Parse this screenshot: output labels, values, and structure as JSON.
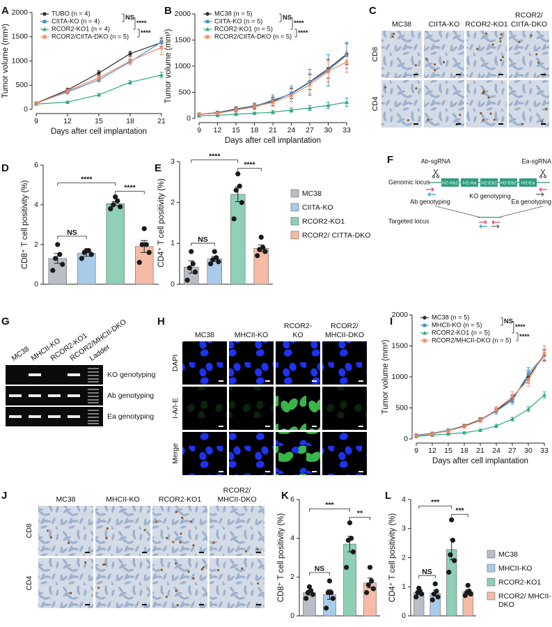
{
  "panel_labels": [
    "A",
    "B",
    "C",
    "D",
    "E",
    "F",
    "G",
    "H",
    "I",
    "J",
    "K",
    "L"
  ],
  "chart_data": [
    {
      "type": "line",
      "y_label": "Tumor volume (mm³)",
      "x_label": "Days after cell implantation",
      "x": [
        9,
        12,
        15,
        18,
        21
      ],
      "xlim": [
        9,
        21
      ],
      "xticks": [
        9,
        12,
        15,
        18,
        21
      ],
      "ylim": [
        0,
        2000
      ],
      "yticks": [
        0,
        500,
        1000,
        1500,
        2000
      ],
      "series": [
        {
          "name": "TUBO (n = 4)",
          "color": "#2b2b2b",
          "marker": "circle",
          "values": [
            130,
            400,
            750,
            1150,
            1380
          ],
          "errors": [
            20,
            40,
            50,
            50,
            80
          ]
        },
        {
          "name": "CIITA-KO (n = 4)",
          "color": "#3a8fd6",
          "marker": "square",
          "values": [
            130,
            360,
            610,
            980,
            1390
          ],
          "errors": [
            20,
            40,
            40,
            60,
            100
          ]
        },
        {
          "name": "RCOR2-KO1 (n = 4)",
          "color": "#2aa885",
          "marker": "triangle",
          "values": [
            110,
            150,
            300,
            560,
            710
          ],
          "errors": [
            10,
            20,
            30,
            40,
            60
          ]
        },
        {
          "name": "RCOR2/CIITA-DKO (n = 5)",
          "color": "#f0845c",
          "marker": "x",
          "values": [
            120,
            380,
            650,
            1000,
            1280
          ],
          "errors": [
            20,
            40,
            60,
            80,
            150
          ]
        }
      ],
      "annotations": [
        "NS",
        "****",
        "****"
      ]
    },
    {
      "type": "line",
      "y_label": "Tumor volume (mm³)",
      "x_label": "Days after cell implantation",
      "x": [
        9,
        12,
        15,
        18,
        21,
        24,
        27,
        30,
        33
      ],
      "xlim": [
        9,
        33
      ],
      "xticks": [
        9,
        12,
        15,
        18,
        21,
        24,
        27,
        30,
        33
      ],
      "ylim": [
        0,
        2000
      ],
      "yticks": [
        0,
        500,
        1000,
        1500,
        2000
      ],
      "series": [
        {
          "name": "MC38 (n = 5)",
          "color": "#2b2b2b",
          "marker": "circle",
          "values": [
            80,
            110,
            180,
            240,
            330,
            480,
            700,
            950,
            1230
          ],
          "errors": [
            20,
            30,
            40,
            50,
            80,
            100,
            150,
            180,
            200
          ]
        },
        {
          "name": "CIITA-KO (n = 5)",
          "color": "#3a8fd6",
          "marker": "square",
          "values": [
            80,
            100,
            170,
            230,
            350,
            470,
            690,
            920,
            1210
          ],
          "errors": [
            20,
            30,
            40,
            60,
            100,
            150,
            250,
            300,
            250
          ]
        },
        {
          "name": "RCOR2-KO1 (n = 5)",
          "color": "#2aa885",
          "marker": "triangle",
          "values": [
            50,
            60,
            80,
            100,
            120,
            160,
            200,
            250,
            310
          ],
          "errors": [
            10,
            10,
            15,
            20,
            30,
            40,
            50,
            60,
            80
          ]
        },
        {
          "name": "RCOR2/CIITA-DKO (n = 5)",
          "color": "#f0845c",
          "marker": "x",
          "values": [
            80,
            100,
            160,
            220,
            310,
            440,
            650,
            900,
            1080
          ],
          "errors": [
            20,
            30,
            40,
            50,
            80,
            120,
            180,
            200,
            200
          ]
        }
      ],
      "annotations": [
        "NS",
        "****",
        "****"
      ]
    },
    {
      "type": "bar",
      "y_label": "CD8⁺ T cell positivity (%)",
      "ylim": [
        0,
        6
      ],
      "yticks": [
        0,
        2,
        4,
        6
      ],
      "values": [
        1.3,
        1.56,
        4.06,
        1.9
      ],
      "errors": [
        0.25,
        0.15,
        0.1,
        0.3
      ],
      "points": [
        [
          0.7,
          1.0,
          1.3,
          1.5,
          2.0
        ],
        [
          1.3,
          1.5,
          1.6,
          1.7,
          1.7
        ],
        [
          3.8,
          3.9,
          4.0,
          4.2,
          4.4
        ],
        [
          1.1,
          1.6,
          2.0,
          2.0,
          2.8
        ]
      ],
      "colors": [
        "#b8bec4",
        "#a8cbea",
        "#8ecfb5",
        "#f5bba6"
      ],
      "annotations": [
        "NS",
        "****",
        "****"
      ]
    },
    {
      "type": "bar",
      "y_label": "CD4⁺ T cell positivity (%)",
      "ylim": [
        0,
        3
      ],
      "yticks": [
        0,
        1,
        2,
        3
      ],
      "categories": [
        "MC38",
        "CIITA-KO",
        "RCOR2-KO1",
        "RCOR2/ CITTA-DKO"
      ],
      "values": [
        0.42,
        0.62,
        2.2,
        0.88
      ],
      "errors": [
        0.15,
        0.06,
        0.18,
        0.08
      ],
      "points": [
        [
          0.1,
          0.3,
          0.4,
          0.5,
          0.8
        ],
        [
          0.5,
          0.55,
          0.6,
          0.65,
          0.8
        ],
        [
          1.6,
          2.0,
          2.3,
          2.4,
          2.7
        ],
        [
          0.7,
          0.8,
          0.85,
          0.9,
          1.15
        ]
      ],
      "colors": [
        "#b8bec4",
        "#a8cbea",
        "#8ecfb5",
        "#f5bba6"
      ],
      "annotations": [
        "NS",
        "****",
        "****"
      ]
    },
    {
      "type": "line",
      "y_label": "Tumor volume (mm³)",
      "x_label": "Days after cell implantation",
      "x": [
        9,
        12,
        15,
        18,
        21,
        24,
        27,
        30,
        33
      ],
      "xlim": [
        9,
        33
      ],
      "xticks": [
        9,
        12,
        15,
        18,
        21,
        24,
        27,
        30,
        33
      ],
      "ylim": [
        0,
        2000
      ],
      "yticks": [
        0,
        500,
        1000,
        1500,
        2000
      ],
      "series": [
        {
          "name": "MC38 (n = 5)",
          "color": "#2b2b2b",
          "marker": "circle",
          "values": [
            60,
            90,
            140,
            210,
            310,
            460,
            650,
            1000,
            1350
          ],
          "errors": [
            10,
            15,
            20,
            25,
            30,
            40,
            60,
            100,
            80
          ]
        },
        {
          "name": "MHCII-KO (n = 5)",
          "color": "#3a8fd6",
          "marker": "square",
          "values": [
            60,
            90,
            140,
            200,
            300,
            450,
            620,
            1050,
            1350
          ],
          "errors": [
            10,
            15,
            20,
            25,
            30,
            50,
            60,
            100,
            100
          ]
        },
        {
          "name": "RCOR2-KO1 (n = 5)",
          "color": "#2aa885",
          "marker": "triangle",
          "values": [
            40,
            60,
            80,
            100,
            140,
            210,
            320,
            480,
            710
          ],
          "errors": [
            5,
            10,
            10,
            15,
            20,
            25,
            30,
            40,
            50
          ]
        },
        {
          "name": "RCOR2/MHCII-DKO (n = 5)",
          "color": "#f0845c",
          "marker": "x",
          "values": [
            50,
            80,
            130,
            200,
            300,
            470,
            680,
            950,
            1380
          ],
          "errors": [
            10,
            15,
            20,
            25,
            30,
            50,
            80,
            100,
            120
          ]
        }
      ],
      "annotations": [
        "NS",
        "****",
        "****"
      ]
    },
    {
      "type": "bar",
      "y_label": "CD8⁺ T cell positivity (%)",
      "ylim": [
        0,
        6
      ],
      "yticks": [
        0,
        2,
        4,
        6
      ],
      "values": [
        1.2,
        1.1,
        3.7,
        1.7
      ],
      "errors": [
        0.12,
        0.25,
        0.4,
        0.25
      ],
      "points": [
        [
          0.9,
          1.1,
          1.2,
          1.3,
          1.5
        ],
        [
          0.4,
          0.9,
          1.2,
          1.2,
          1.8
        ],
        [
          2.5,
          3.3,
          3.9,
          4.0,
          4.8
        ],
        [
          1.2,
          1.4,
          1.6,
          1.8,
          2.5
        ]
      ],
      "colors": [
        "#b8bec4",
        "#a8cbea",
        "#8ecfb5",
        "#f5bba6"
      ],
      "annotations": [
        "NS",
        "***",
        "**"
      ]
    },
    {
      "type": "bar",
      "y_label": "CD4⁺ T cell positivity (%)",
      "ylim": [
        0,
        4
      ],
      "yticks": [
        0,
        1,
        2,
        3,
        4
      ],
      "categories": [
        "MC38",
        "MHCII-KO",
        "RCOR2-KO1",
        "RCOR2/ MHCII-DKO"
      ],
      "values": [
        0.8,
        0.78,
        2.28,
        0.83
      ],
      "errors": [
        0.07,
        0.1,
        0.35,
        0.07
      ],
      "points": [
        [
          0.65,
          0.75,
          0.8,
          0.85,
          0.95
        ],
        [
          0.55,
          0.65,
          0.75,
          0.85,
          1.1
        ],
        [
          1.5,
          1.9,
          2.1,
          2.6,
          3.3
        ],
        [
          0.7,
          0.75,
          0.8,
          0.85,
          1.05
        ]
      ],
      "colors": [
        "#b8bec4",
        "#a8cbea",
        "#8ecfb5",
        "#f5bba6"
      ],
      "annotations": [
        "NS",
        "***",
        "***"
      ]
    }
  ],
  "panel_c": {
    "columns": [
      [
        "MC38"
      ],
      [
        "CIITA-KO"
      ],
      [
        "RCOR2-KO1"
      ],
      [
        "RCOR2/",
        "CIITA-DKO"
      ]
    ],
    "rows": [
      "CD8",
      "CD4"
    ]
  },
  "panel_f": {
    "guides": [
      "Ab-sgRNA",
      "Ea-sgRNA"
    ],
    "genomic_locus": "Genomic locus",
    "exons": [
      "H2-Ab1",
      "H2-Aa",
      "H2-Eb1",
      "H2-Eb2",
      "H2-Ea"
    ],
    "primers": [
      "Ab genotyping",
      "KO genotyping",
      "Ea genotyping"
    ],
    "targeted_locus": "Targeted locus"
  },
  "panel_g": {
    "lanes": [
      "MC38",
      "MHCII-KO",
      "RCOR2-KO1",
      "RCOR2/MHCII-DKO",
      "Ladder"
    ],
    "rows": [
      "KO genotyping",
      "Ab genotyping",
      "Ea genotyping"
    ]
  },
  "panel_h": {
    "columns": [
      [
        "MC38"
      ],
      [
        "MHCII-KO"
      ],
      [
        "RCOR2-",
        "KO"
      ],
      [
        "RCOR2/",
        "MHCII-DKO"
      ]
    ],
    "rows": [
      "DAPI",
      "I-A/I-E",
      "Merge"
    ]
  },
  "panel_j": {
    "columns": [
      [
        "MC38"
      ],
      [
        "MHCII-KO"
      ],
      [
        "RCOR2-KO1"
      ],
      [
        "RCOR2/",
        "MHCII-DKO"
      ]
    ],
    "rows": [
      "CD8",
      "CD4"
    ]
  }
}
